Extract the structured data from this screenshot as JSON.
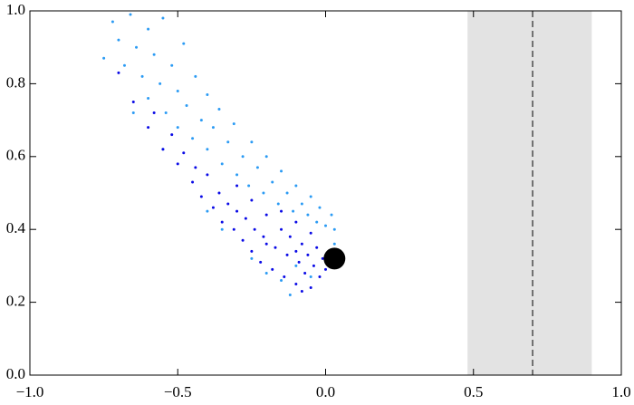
{
  "chart_data": {
    "type": "scatter",
    "xlim": [
      -1,
      1
    ],
    "ylim": [
      0,
      1
    ],
    "xticks": [
      {
        "value": -1,
        "label": "−1.0"
      },
      {
        "value": -0.5,
        "label": "−0.5"
      },
      {
        "value": 0,
        "label": "0.0"
      },
      {
        "value": 0.5,
        "label": "0.5"
      },
      {
        "value": 1,
        "label": "1.0"
      }
    ],
    "yticks": [
      {
        "value": 0,
        "label": "0.0"
      },
      0.2,
      0.4,
      0.6,
      0.8,
      {
        "value": 1,
        "label": "1.0"
      }
    ],
    "band": [
      0.48,
      0.9
    ],
    "band_color": "#e3e3e3",
    "vline": 0.7,
    "series": [
      {
        "color": "#2b9bf4",
        "size": 3,
        "x": [
          -0.75,
          -0.72,
          -0.7,
          -0.68,
          -0.66,
          -0.64,
          -0.62,
          -0.6,
          -0.6,
          -0.58,
          -0.56,
          -0.55,
          -0.54,
          -0.52,
          -0.5,
          -0.5,
          -0.48,
          -0.47,
          -0.45,
          -0.44,
          -0.42,
          -0.4,
          -0.4,
          -0.38,
          -0.36,
          -0.35,
          -0.33,
          -0.31,
          -0.3,
          -0.28,
          -0.26,
          -0.25,
          -0.23,
          -0.21,
          -0.2,
          -0.18,
          -0.16,
          -0.15,
          -0.13,
          -0.11,
          -0.1,
          -0.08,
          -0.06,
          -0.05,
          -0.03,
          -0.02,
          0.0,
          0.02,
          0.03,
          -0.1,
          -0.05,
          -0.15,
          -0.2,
          -0.25,
          -0.55,
          -0.65,
          -0.12,
          0.03,
          -0.35,
          -0.4
        ],
        "values": [
          0.87,
          0.97,
          0.92,
          0.85,
          0.99,
          0.9,
          0.82,
          0.95,
          0.76,
          0.88,
          0.8,
          0.98,
          0.72,
          0.85,
          0.78,
          0.68,
          0.91,
          0.74,
          0.65,
          0.82,
          0.7,
          0.77,
          0.62,
          0.68,
          0.73,
          0.58,
          0.64,
          0.69,
          0.55,
          0.6,
          0.52,
          0.64,
          0.57,
          0.5,
          0.6,
          0.53,
          0.47,
          0.56,
          0.5,
          0.45,
          0.52,
          0.47,
          0.44,
          0.49,
          0.42,
          0.46,
          0.41,
          0.44,
          0.4,
          0.3,
          0.27,
          0.26,
          0.28,
          0.32,
          0.62,
          0.72,
          0.22,
          0.36,
          0.4,
          0.45
        ]
      },
      {
        "color": "#0a0ae6",
        "size": 3,
        "x": [
          -0.7,
          -0.65,
          -0.6,
          -0.58,
          -0.55,
          -0.52,
          -0.5,
          -0.48,
          -0.45,
          -0.44,
          -0.42,
          -0.4,
          -0.38,
          -0.36,
          -0.35,
          -0.33,
          -0.31,
          -0.3,
          -0.28,
          -0.27,
          -0.25,
          -0.24,
          -0.22,
          -0.21,
          -0.2,
          -0.18,
          -0.17,
          -0.15,
          -0.14,
          -0.13,
          -0.12,
          -0.1,
          -0.09,
          -0.08,
          -0.07,
          -0.06,
          -0.05,
          -0.04,
          -0.03,
          -0.02,
          -0.01,
          0.0,
          -0.05,
          -0.1,
          -0.15,
          -0.25,
          -0.3,
          -0.2,
          -0.1,
          -0.08
        ],
        "values": [
          0.83,
          0.75,
          0.68,
          0.72,
          0.62,
          0.66,
          0.58,
          0.61,
          0.53,
          0.57,
          0.49,
          0.55,
          0.46,
          0.5,
          0.42,
          0.47,
          0.4,
          0.45,
          0.37,
          0.43,
          0.34,
          0.4,
          0.31,
          0.38,
          0.44,
          0.29,
          0.35,
          0.4,
          0.27,
          0.33,
          0.38,
          0.25,
          0.31,
          0.36,
          0.28,
          0.33,
          0.24,
          0.3,
          0.35,
          0.27,
          0.32,
          0.29,
          0.39,
          0.42,
          0.45,
          0.48,
          0.52,
          0.36,
          0.34,
          0.23
        ]
      },
      {
        "color": "#000000",
        "size": 24,
        "x": [
          0.03
        ],
        "values": [
          0.32
        ]
      }
    ]
  }
}
